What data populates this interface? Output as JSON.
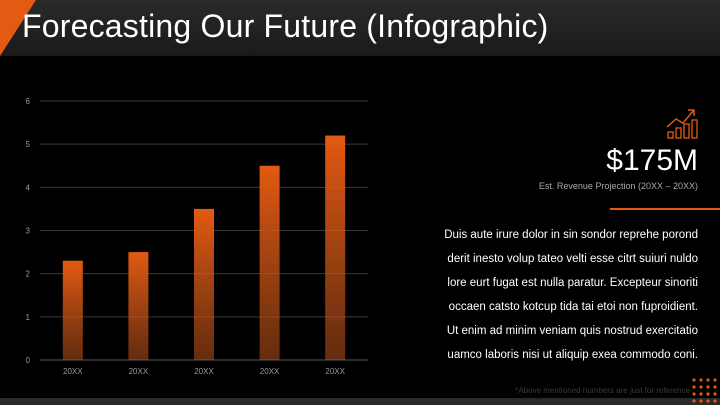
{
  "slide": {
    "title": "Forecasting Our Future (Infographic)",
    "stat": {
      "value": "$175M",
      "caption": "Est. Revenue Projection (20XX – 20XX)"
    },
    "body_lines": [
      "Duis aute irure dolor in sin sondor reprehe porond",
      "derit inesto volup tateo velti esse citrt suiuri nuldo",
      "lore eurt fugat est nulla paratur. Excepteur sinoriti",
      "occaen catsto kotcup tida tai etoi non fuproidient.",
      "Ut enim ad minim veniam quis nostrud exercitatio",
      "uamco laboris nisi ut aliquip exea commodo coni."
    ],
    "footnote": "*Above mentioned numbers are just for reference",
    "colors": {
      "accent": "#e35a12",
      "background": "#000000"
    },
    "icons": [
      "growth-chart-icon"
    ]
  },
  "chart_data": {
    "type": "bar",
    "categories": [
      "20XX",
      "20XX",
      "20XX",
      "20XX",
      "20XX"
    ],
    "values": [
      2.3,
      2.5,
      3.5,
      4.5,
      5.2
    ],
    "yticks": [
      0,
      1,
      2,
      3,
      4,
      5,
      6
    ],
    "ylim": [
      0,
      6
    ],
    "title": "",
    "xlabel": "",
    "ylabel": "",
    "grid": true,
    "bar_color": "#e35a12"
  }
}
